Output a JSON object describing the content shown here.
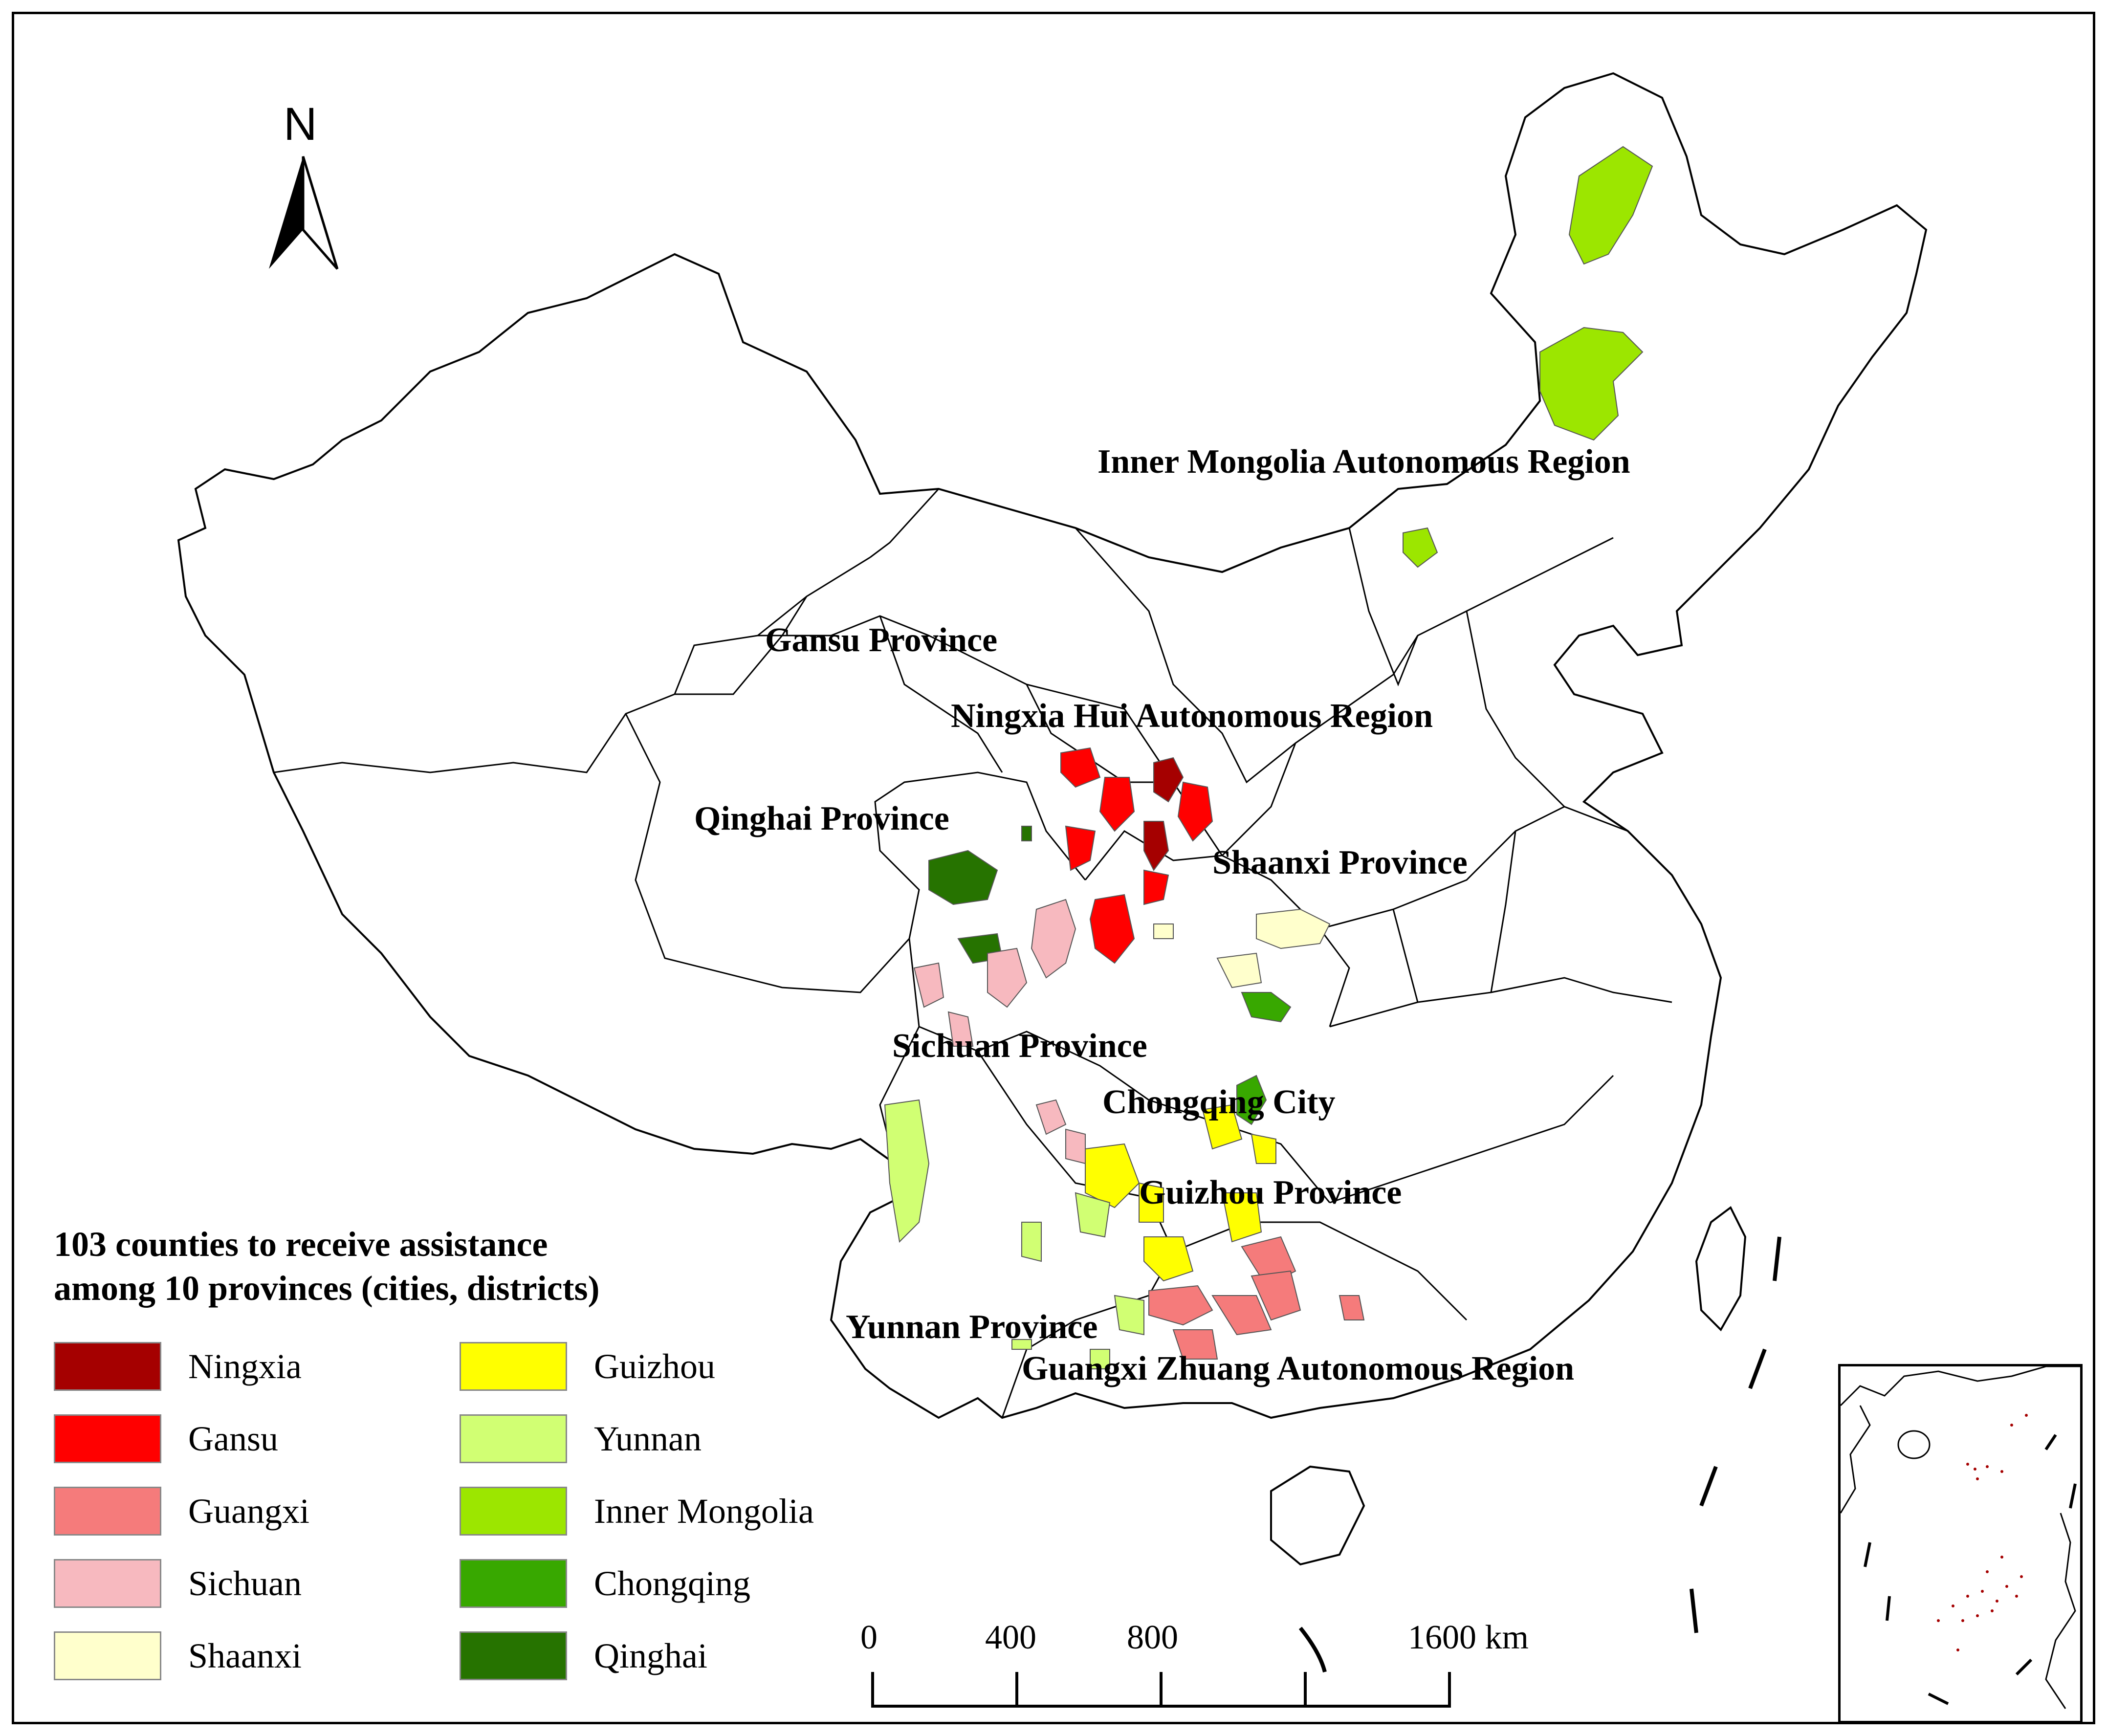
{
  "north_arrow": {
    "letter": "N"
  },
  "region_labels": {
    "inner_mongolia": "Inner Mongolia Autonomous Region",
    "gansu": "Gansu Province",
    "ningxia": "Ningxia Hui Autonomous Region",
    "qinghai": "Qinghai Province",
    "shaanxi": "Shaanxi Province",
    "sichuan": "Sichuan Province",
    "chongqing": "Chongqing City",
    "guizhou": "Guizhou Province",
    "yunnan": "Yunnan Province",
    "guangxi": "Guangxi Zhuang Autonomous Region"
  },
  "legend": {
    "title_line1": "103 counties to receive assistance",
    "title_line2": "among 10 provinces (cities, districts)",
    "items": [
      {
        "label": "Ningxia",
        "color": "#a50000"
      },
      {
        "label": "Gansu",
        "color": "#ff0000"
      },
      {
        "label": "Guangxi",
        "color": "#f57b7b"
      },
      {
        "label": "Sichuan",
        "color": "#f7b9bf"
      },
      {
        "label": "Shaanxi",
        "color": "#ffffcc"
      },
      {
        "label": "Guizhou",
        "color": "#ffff00"
      },
      {
        "label": "Yunnan",
        "color": "#d1ff73"
      },
      {
        "label": "Inner Mongolia",
        "color": "#9ce600"
      },
      {
        "label": "Chongqing",
        "color": "#38a800"
      },
      {
        "label": "Qinghai",
        "color": "#267300"
      }
    ]
  },
  "scale_bar": {
    "tick_0": "0",
    "tick_400": "400",
    "tick_800": "800",
    "tick_1600": "1600 km"
  }
}
